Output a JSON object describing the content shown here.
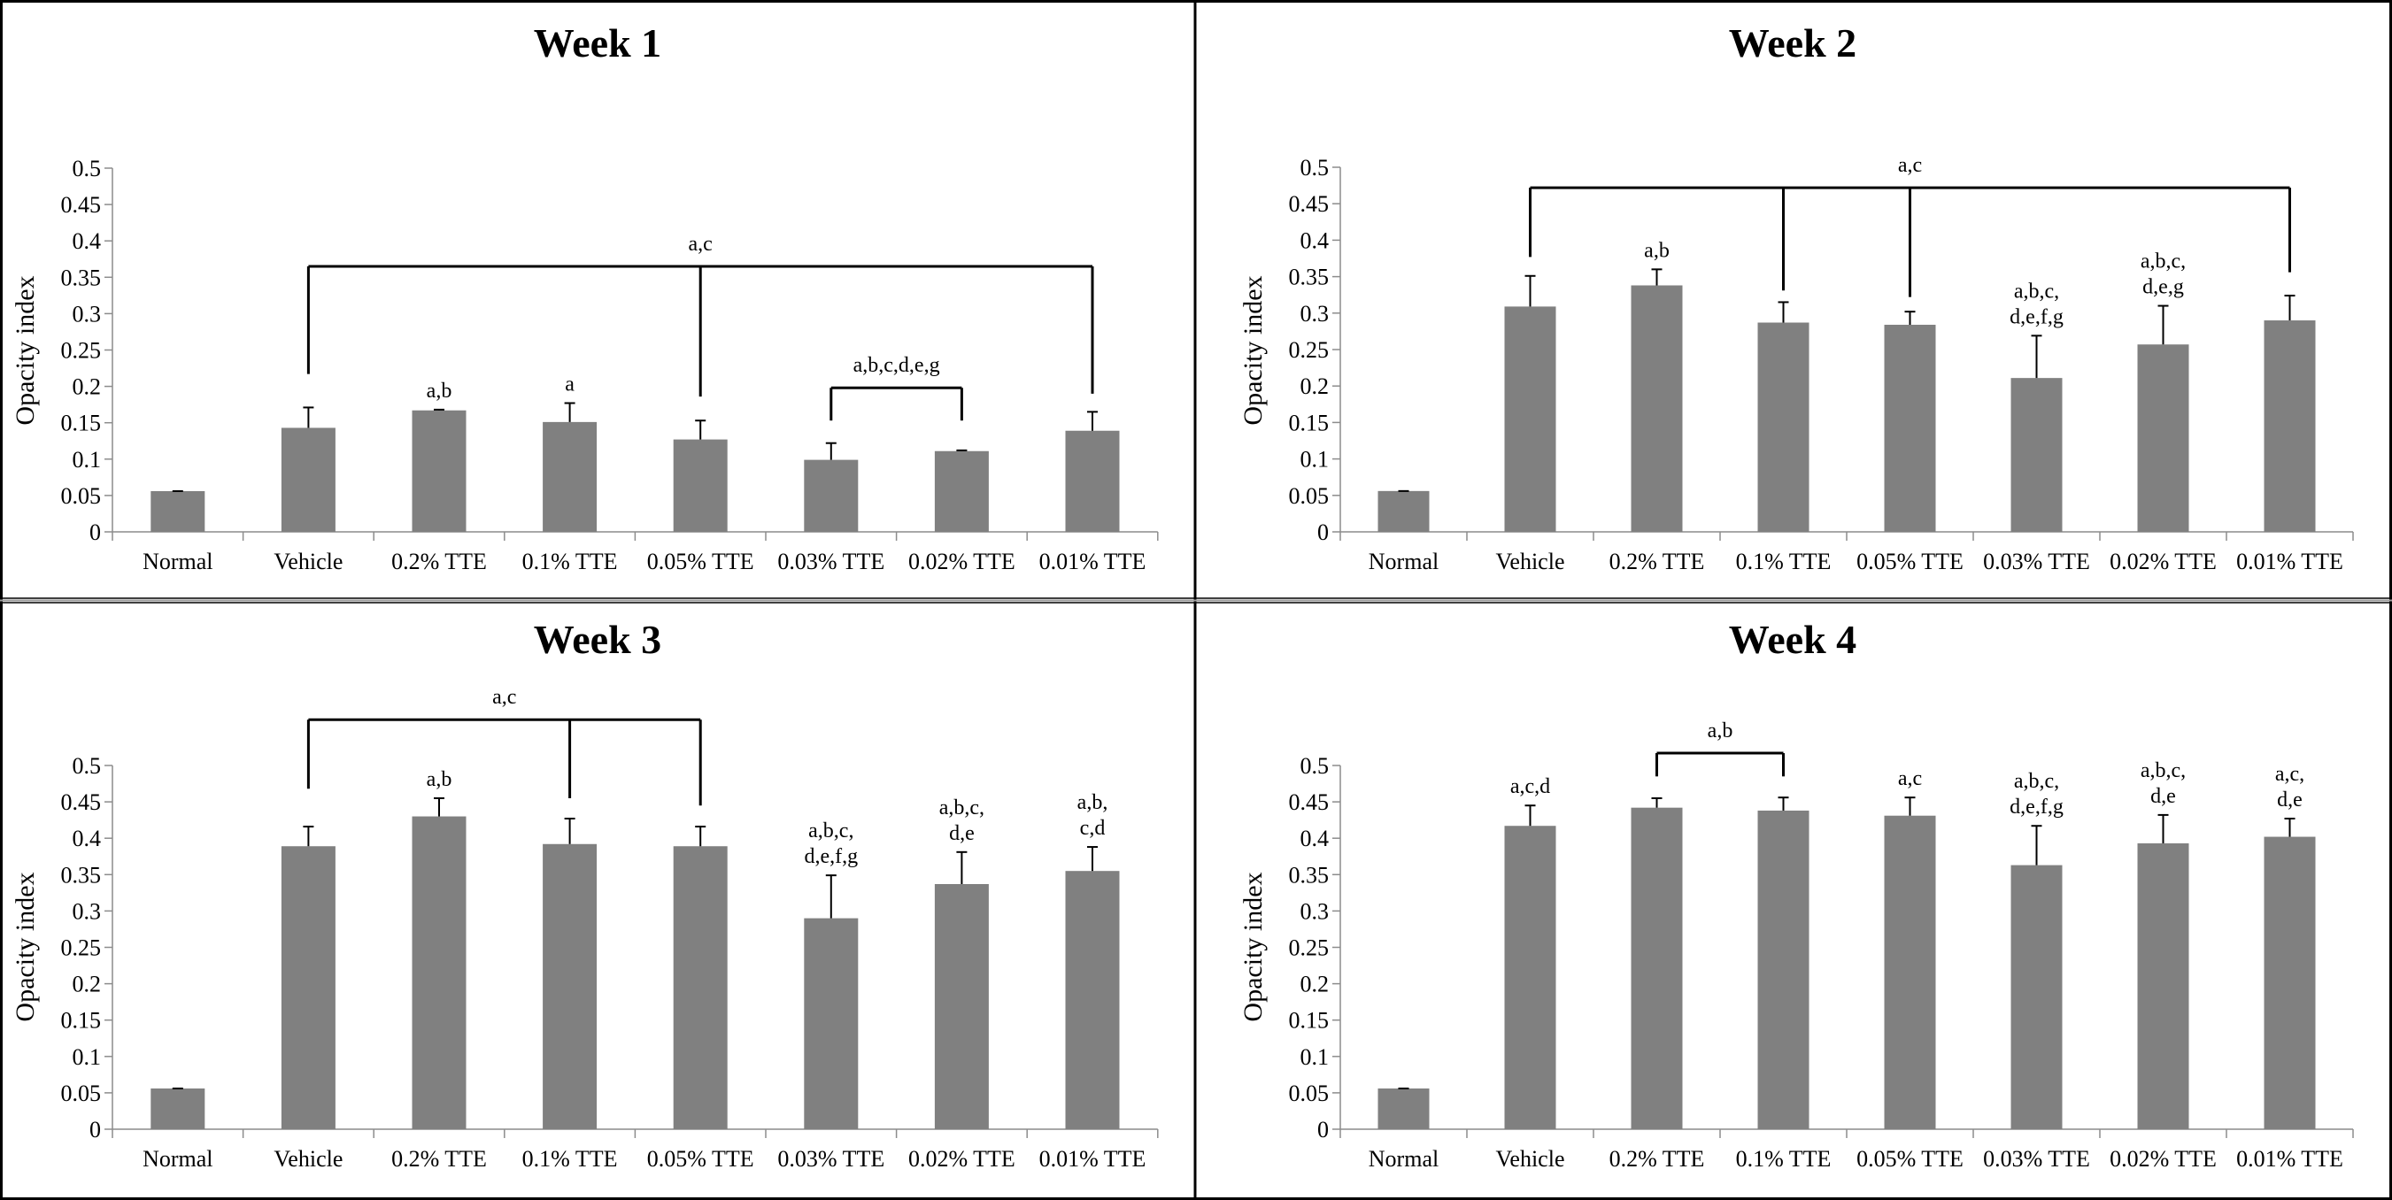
{
  "figure": {
    "bar_color": "#808080",
    "frame_color": "#000000",
    "divider_color": "#8c8c8c"
  },
  "chart_data": [
    {
      "type": "bar",
      "title": "Week 1",
      "xlabel": "",
      "ylabel": "Opacity index",
      "ylim": [
        0,
        0.5
      ],
      "yticks": [
        "0",
        "0.05",
        "0.1",
        "0.15",
        "0.2",
        "0.25",
        "0.3",
        "0.35",
        "0.4",
        "0.45",
        "0.5"
      ],
      "grid": false,
      "categories": [
        "Normal",
        "Vehicle",
        "0.2% TTE",
        "0.1% TTE",
        "0.05% TTE",
        "0.03% TTE",
        "0.02% TTE",
        "0.01% TTE"
      ],
      "values": [
        0.056,
        0.143,
        0.167,
        0.151,
        0.127,
        0.099,
        0.111,
        0.139
      ],
      "error_upper": [
        0.056,
        0.171,
        0.168,
        0.177,
        0.153,
        0.122,
        0.112,
        0.165
      ],
      "annotations": [
        {
          "category": 2,
          "lines": [
            "a,b"
          ]
        },
        {
          "category": 3,
          "lines": [
            "a"
          ]
        }
      ],
      "brackets": [
        {
          "label": "a,c",
          "level": 0.365,
          "legs": [
            {
              "category": 1,
              "end": 0.217
            },
            {
              "category": 4,
              "end": 0.186
            },
            {
              "category": 7,
              "end": 0.19
            }
          ]
        },
        {
          "label": "a,b,c,d,e,g",
          "level": 0.198,
          "legs": [
            {
              "category": 5,
              "end": 0.153
            },
            {
              "category": 6,
              "end": 0.153
            }
          ]
        }
      ]
    },
    {
      "type": "bar",
      "title": "Week 2",
      "xlabel": "",
      "ylabel": "Opacity index",
      "ylim": [
        0,
        0.5
      ],
      "yticks": [
        "0",
        "0.05",
        "0.1",
        "0.15",
        "0.2",
        "0.25",
        "0.3",
        "0.35",
        "0.4",
        "0.45",
        "0.5"
      ],
      "grid": false,
      "categories": [
        "Normal",
        "Vehicle",
        "0.2% TTE",
        "0.1% TTE",
        "0.05% TTE",
        "0.03% TTE",
        "0.02% TTE",
        "0.01% TTE"
      ],
      "values": [
        0.056,
        0.309,
        0.338,
        0.287,
        0.284,
        0.211,
        0.257,
        0.29
      ],
      "error_upper": [
        0.056,
        0.351,
        0.36,
        0.315,
        0.302,
        0.269,
        0.31,
        0.324
      ],
      "annotations": [
        {
          "category": 2,
          "lines": [
            "a,b"
          ]
        },
        {
          "category": 5,
          "lines": [
            "a,b,c,",
            "d,e,f,g"
          ]
        },
        {
          "category": 6,
          "lines": [
            "a,b,c,",
            "d,e,g"
          ]
        }
      ],
      "brackets": [
        {
          "label": "a,c",
          "level": 0.472,
          "legs": [
            {
              "category": 1,
              "end": 0.377
            },
            {
              "category": 3,
              "end": 0.331
            },
            {
              "category": 4,
              "end": 0.322
            },
            {
              "category": 7,
              "end": 0.356
            }
          ]
        }
      ]
    },
    {
      "type": "bar",
      "title": "Week 3",
      "xlabel": "",
      "ylabel": "Opacity index",
      "ylim": [
        0,
        0.5
      ],
      "yticks": [
        "0",
        "0.05",
        "0.1",
        "0.15",
        "0.2",
        "0.25",
        "0.3",
        "0.35",
        "0.4",
        "0.45",
        "0.5"
      ],
      "grid": false,
      "categories": [
        "Normal",
        "Vehicle",
        "0.2% TTE",
        "0.1% TTE",
        "0.05% TTE",
        "0.03% TTE",
        "0.02% TTE",
        "0.01% TTE"
      ],
      "values": [
        0.056,
        0.389,
        0.43,
        0.392,
        0.389,
        0.29,
        0.337,
        0.355
      ],
      "error_upper": [
        0.056,
        0.416,
        0.455,
        0.427,
        0.416,
        0.349,
        0.381,
        0.388
      ],
      "annotations": [
        {
          "category": 2,
          "lines": [
            "a,b"
          ]
        },
        {
          "category": 5,
          "lines": [
            "a,b,c,",
            "d,e,f,g"
          ]
        },
        {
          "category": 6,
          "lines": [
            "a,b,c,",
            "d,e"
          ]
        },
        {
          "category": 7,
          "lines": [
            "a,b,",
            "c,d"
          ]
        }
      ],
      "brackets": [
        {
          "label": "a,c",
          "level": 0.563,
          "legs": [
            {
              "category": 1,
              "end": 0.468
            },
            {
              "category": 3,
              "end": 0.455
            },
            {
              "category": 4,
              "end": 0.445
            }
          ]
        }
      ]
    },
    {
      "type": "bar",
      "title": "Week 4",
      "xlabel": "",
      "ylabel": "Opacity index",
      "ylim": [
        0,
        0.5
      ],
      "yticks": [
        "0",
        "0.05",
        "0.1",
        "0.15",
        "0.2",
        "0.25",
        "0.3",
        "0.35",
        "0.4",
        "0.45",
        "0.5"
      ],
      "grid": false,
      "categories": [
        "Normal",
        "Vehicle",
        "0.2% TTE",
        "0.1% TTE",
        "0.05% TTE",
        "0.03% TTE",
        "0.02% TTE",
        "0.01% TTE"
      ],
      "values": [
        0.056,
        0.417,
        0.442,
        0.438,
        0.431,
        0.363,
        0.393,
        0.402
      ],
      "error_upper": [
        0.056,
        0.445,
        0.455,
        0.456,
        0.456,
        0.417,
        0.432,
        0.427
      ],
      "annotations": [
        {
          "category": 1,
          "lines": [
            "a,c,d"
          ]
        },
        {
          "category": 4,
          "lines": [
            "a,c"
          ]
        },
        {
          "category": 5,
          "lines": [
            "a,b,c,",
            "d,e,f,g"
          ]
        },
        {
          "category": 6,
          "lines": [
            "a,b,c,",
            "d,e"
          ]
        },
        {
          "category": 7,
          "lines": [
            "a,c,",
            "d,e"
          ]
        }
      ],
      "brackets": [
        {
          "label": "a,b",
          "level": 0.517,
          "legs": [
            {
              "category": 2,
              "end": 0.485
            },
            {
              "category": 3,
              "end": 0.485
            }
          ]
        }
      ]
    }
  ]
}
